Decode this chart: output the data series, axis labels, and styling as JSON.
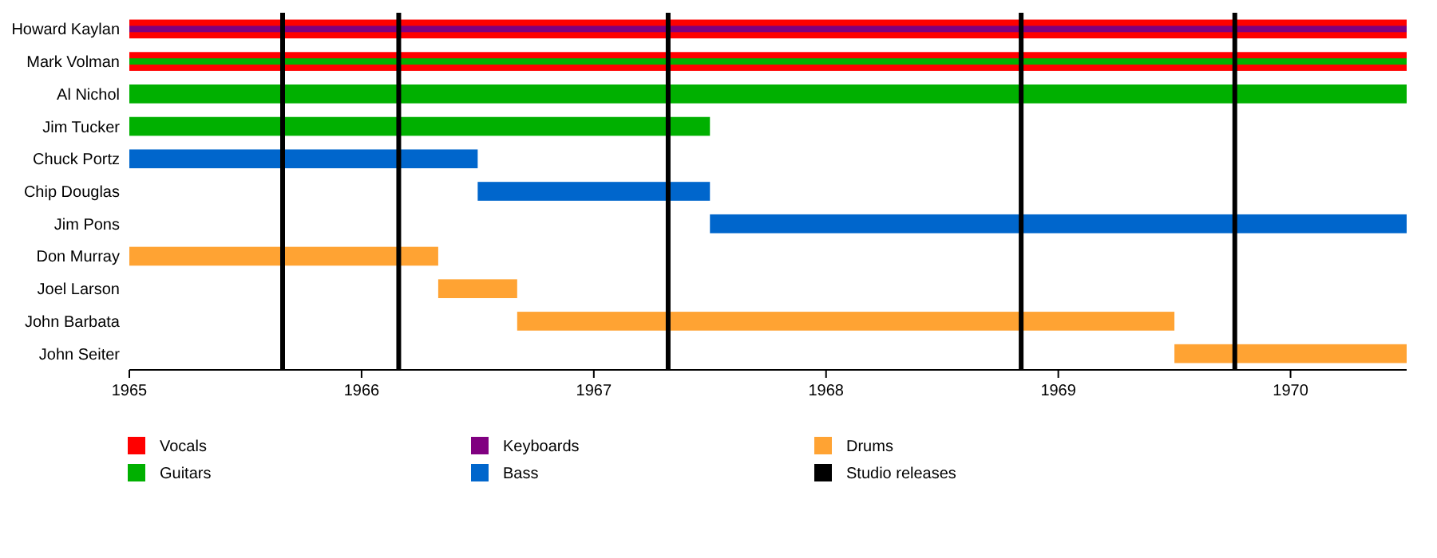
{
  "chart_data": {
    "type": "bar",
    "orientation": "horizontal",
    "categories": [
      "Howard Kaylan",
      "Mark Volman",
      "Al Nichol",
      "Jim Tucker",
      "Chuck Portz",
      "Chip Douglas",
      "Jim Pons",
      "Don Murray",
      "Joel Larson",
      "John Barbata",
      "John Seiter"
    ],
    "series": [
      {
        "name": "Vocals",
        "color": "#ff0000",
        "base": [
          1965,
          1965,
          null,
          null,
          null,
          null,
          null,
          null,
          null,
          null,
          null
        ],
        "values": [
          5.5,
          5.5,
          null,
          null,
          null,
          null,
          null,
          null,
          null,
          null,
          null
        ]
      },
      {
        "name": "Guitars",
        "color": "#00b000",
        "base": [
          null,
          1965,
          1965,
          1965,
          null,
          null,
          null,
          null,
          null,
          null,
          null
        ],
        "values": [
          null,
          5.5,
          5.5,
          2.5,
          null,
          null,
          null,
          null,
          null,
          null,
          null
        ]
      },
      {
        "name": "Keyboards",
        "color": "#800080",
        "base": [
          1965,
          null,
          null,
          null,
          null,
          null,
          null,
          null,
          null,
          null,
          null
        ],
        "values": [
          5.5,
          null,
          null,
          null,
          null,
          null,
          null,
          null,
          null,
          null,
          null
        ]
      },
      {
        "name": "Bass",
        "color": "#0066cc",
        "base": [
          null,
          null,
          null,
          null,
          1965,
          1966.5,
          1967.5,
          null,
          null,
          null,
          null
        ],
        "values": [
          null,
          null,
          null,
          null,
          1.5,
          1,
          3,
          null,
          null,
          null,
          null
        ]
      },
      {
        "name": "Drums",
        "color": "#ffa333",
        "base": [
          null,
          null,
          null,
          null,
          null,
          null,
          null,
          1965,
          1966.33,
          1966.67,
          1969.5
        ],
        "values": [
          null,
          null,
          null,
          null,
          null,
          null,
          null,
          1.33,
          0.34,
          2.83,
          1
        ]
      }
    ],
    "xlim": [
      1965,
      1970.5
    ],
    "xticks": [
      1965,
      1966,
      1967,
      1968,
      1969,
      1970
    ],
    "ref_lines": [
      {
        "axis": "x",
        "value": 1965.66,
        "label": "Studio releases",
        "color": "#000000"
      },
      {
        "axis": "x",
        "value": 1966.16,
        "color": "#000000"
      },
      {
        "axis": "x",
        "value": 1967.32,
        "color": "#000000"
      },
      {
        "axis": "x",
        "value": 1968.84,
        "color": "#000000"
      },
      {
        "axis": "x",
        "value": 1969.76,
        "color": "#000000"
      }
    ],
    "legend": "bottom"
  }
}
